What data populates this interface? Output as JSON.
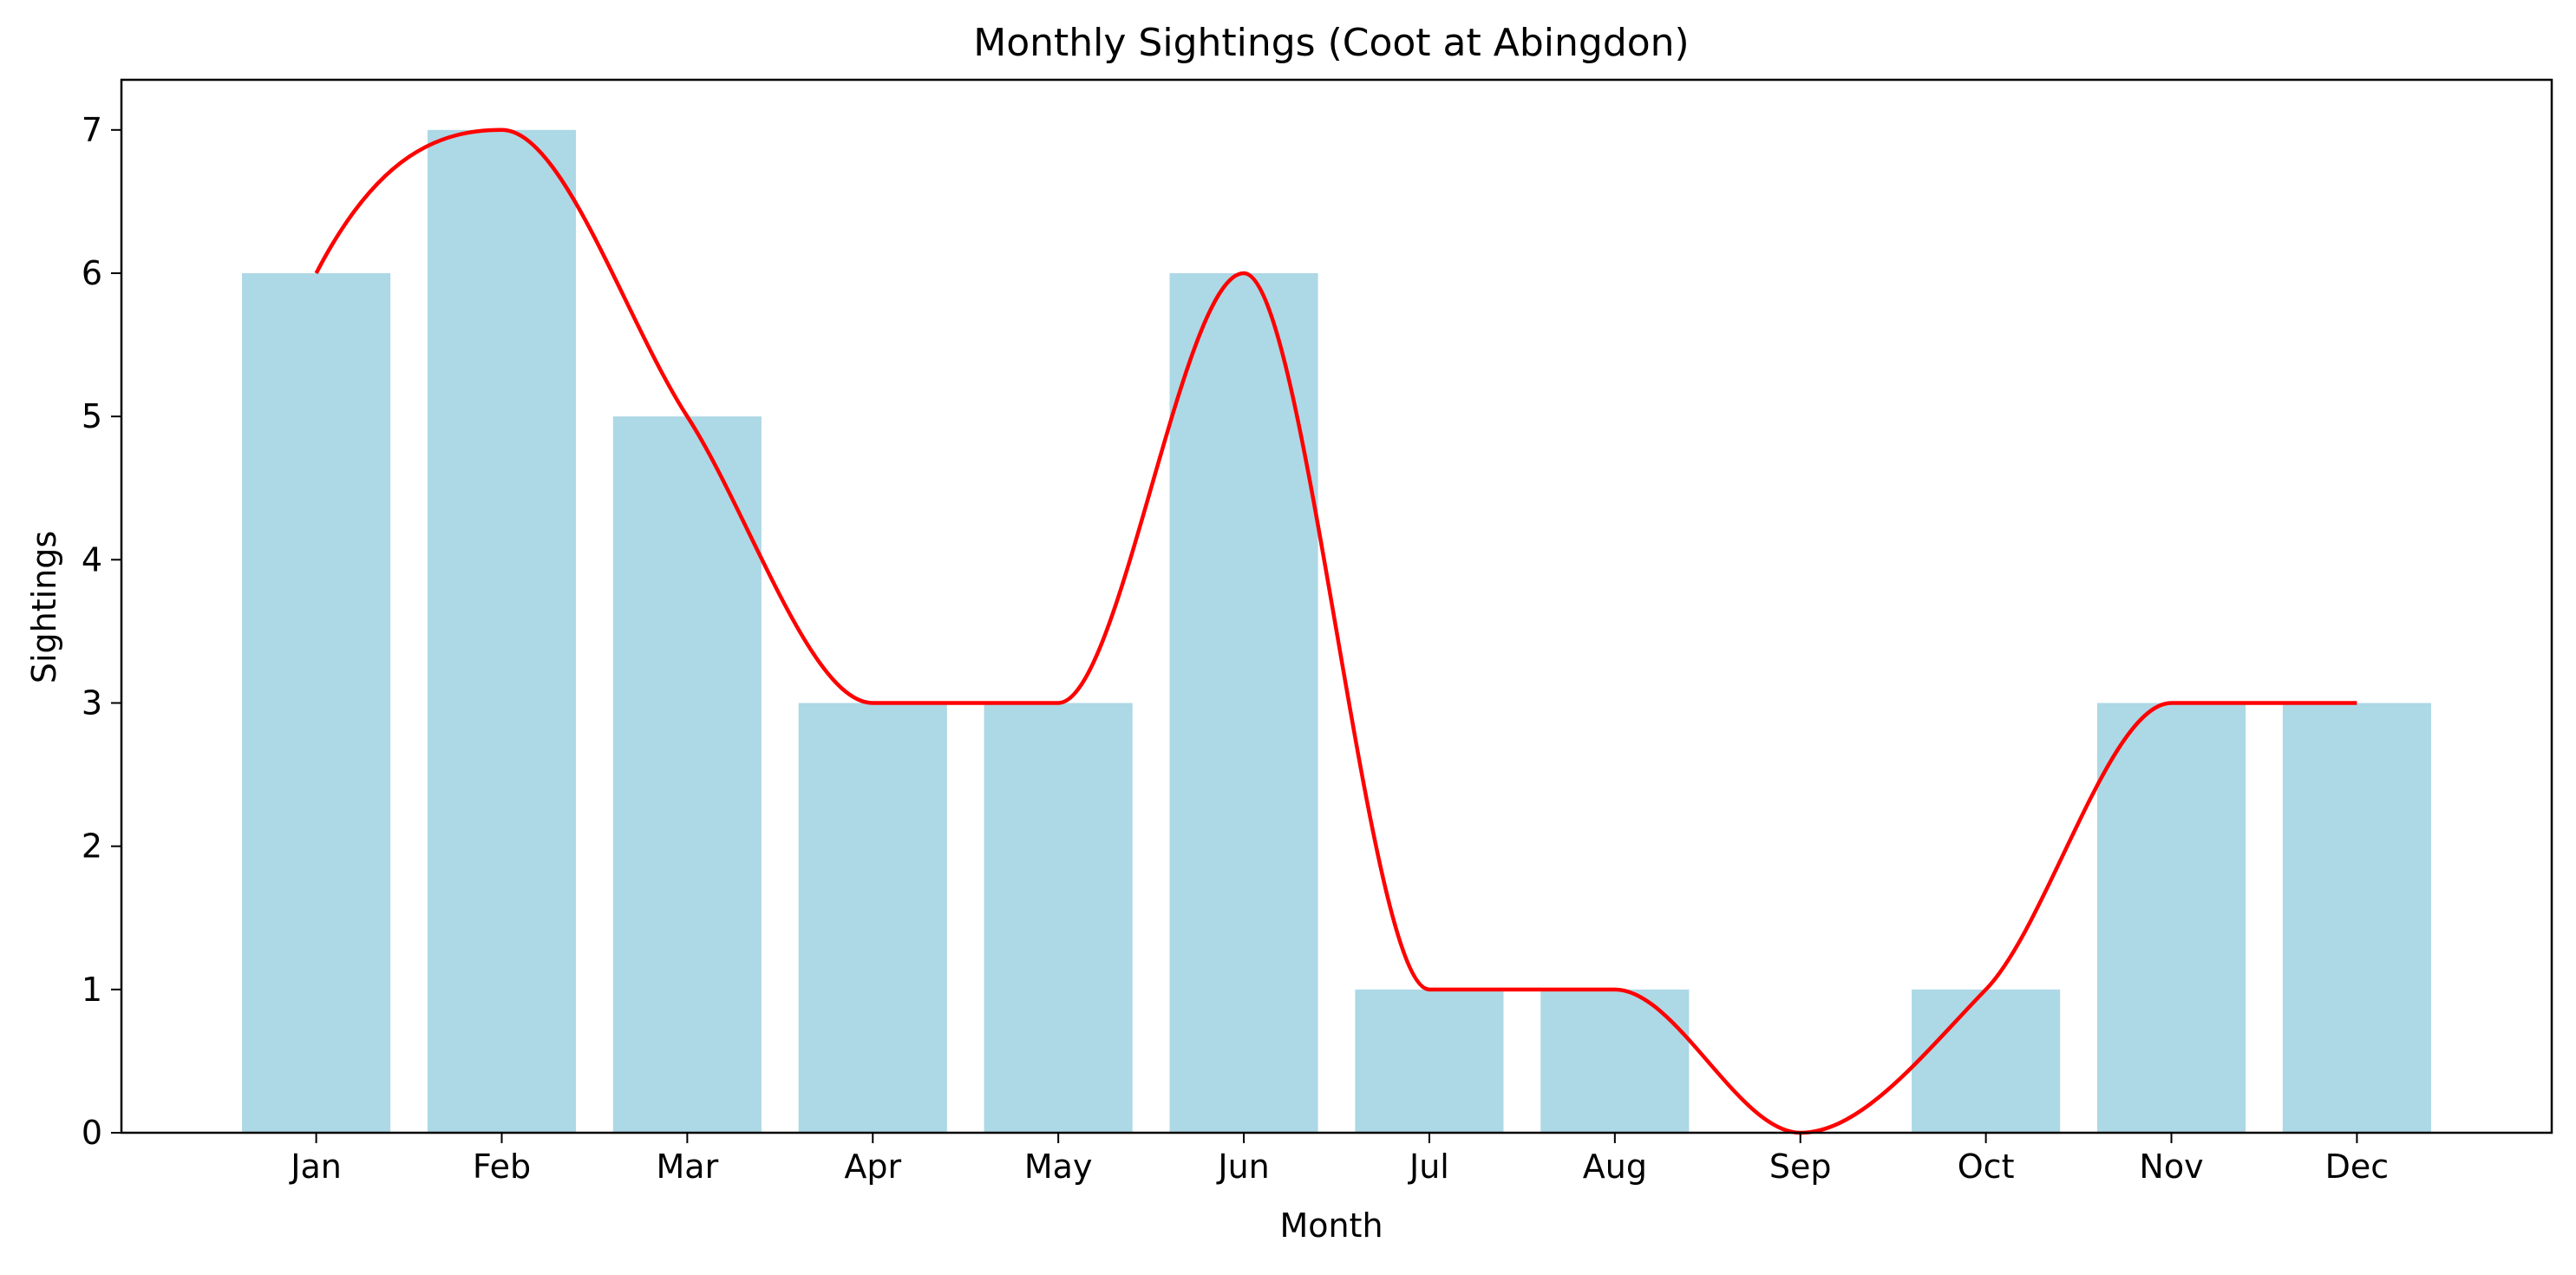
{
  "chart_data": {
    "type": "bar",
    "title": "Monthly Sightings (Coot at Abingdon)",
    "xlabel": "Month",
    "ylabel": "Sightings",
    "categories": [
      "Jan",
      "Feb",
      "Mar",
      "Apr",
      "May",
      "Jun",
      "Jul",
      "Aug",
      "Sep",
      "Oct",
      "Nov",
      "Dec"
    ],
    "series": [
      {
        "kind": "bar",
        "values": [
          6,
          7,
          5,
          3,
          3,
          6,
          1,
          1,
          0,
          1,
          3,
          3
        ],
        "color": "#add8e6"
      },
      {
        "kind": "smoothed-line",
        "values": [
          6,
          7,
          5,
          3,
          3,
          6,
          1,
          1,
          0,
          1,
          3,
          3
        ],
        "color": "#ff0000"
      }
    ],
    "ylim": [
      0,
      7.35
    ],
    "yticks": [
      0,
      1,
      2,
      3,
      4,
      5,
      6,
      7
    ],
    "grid": false,
    "legend": "none"
  }
}
